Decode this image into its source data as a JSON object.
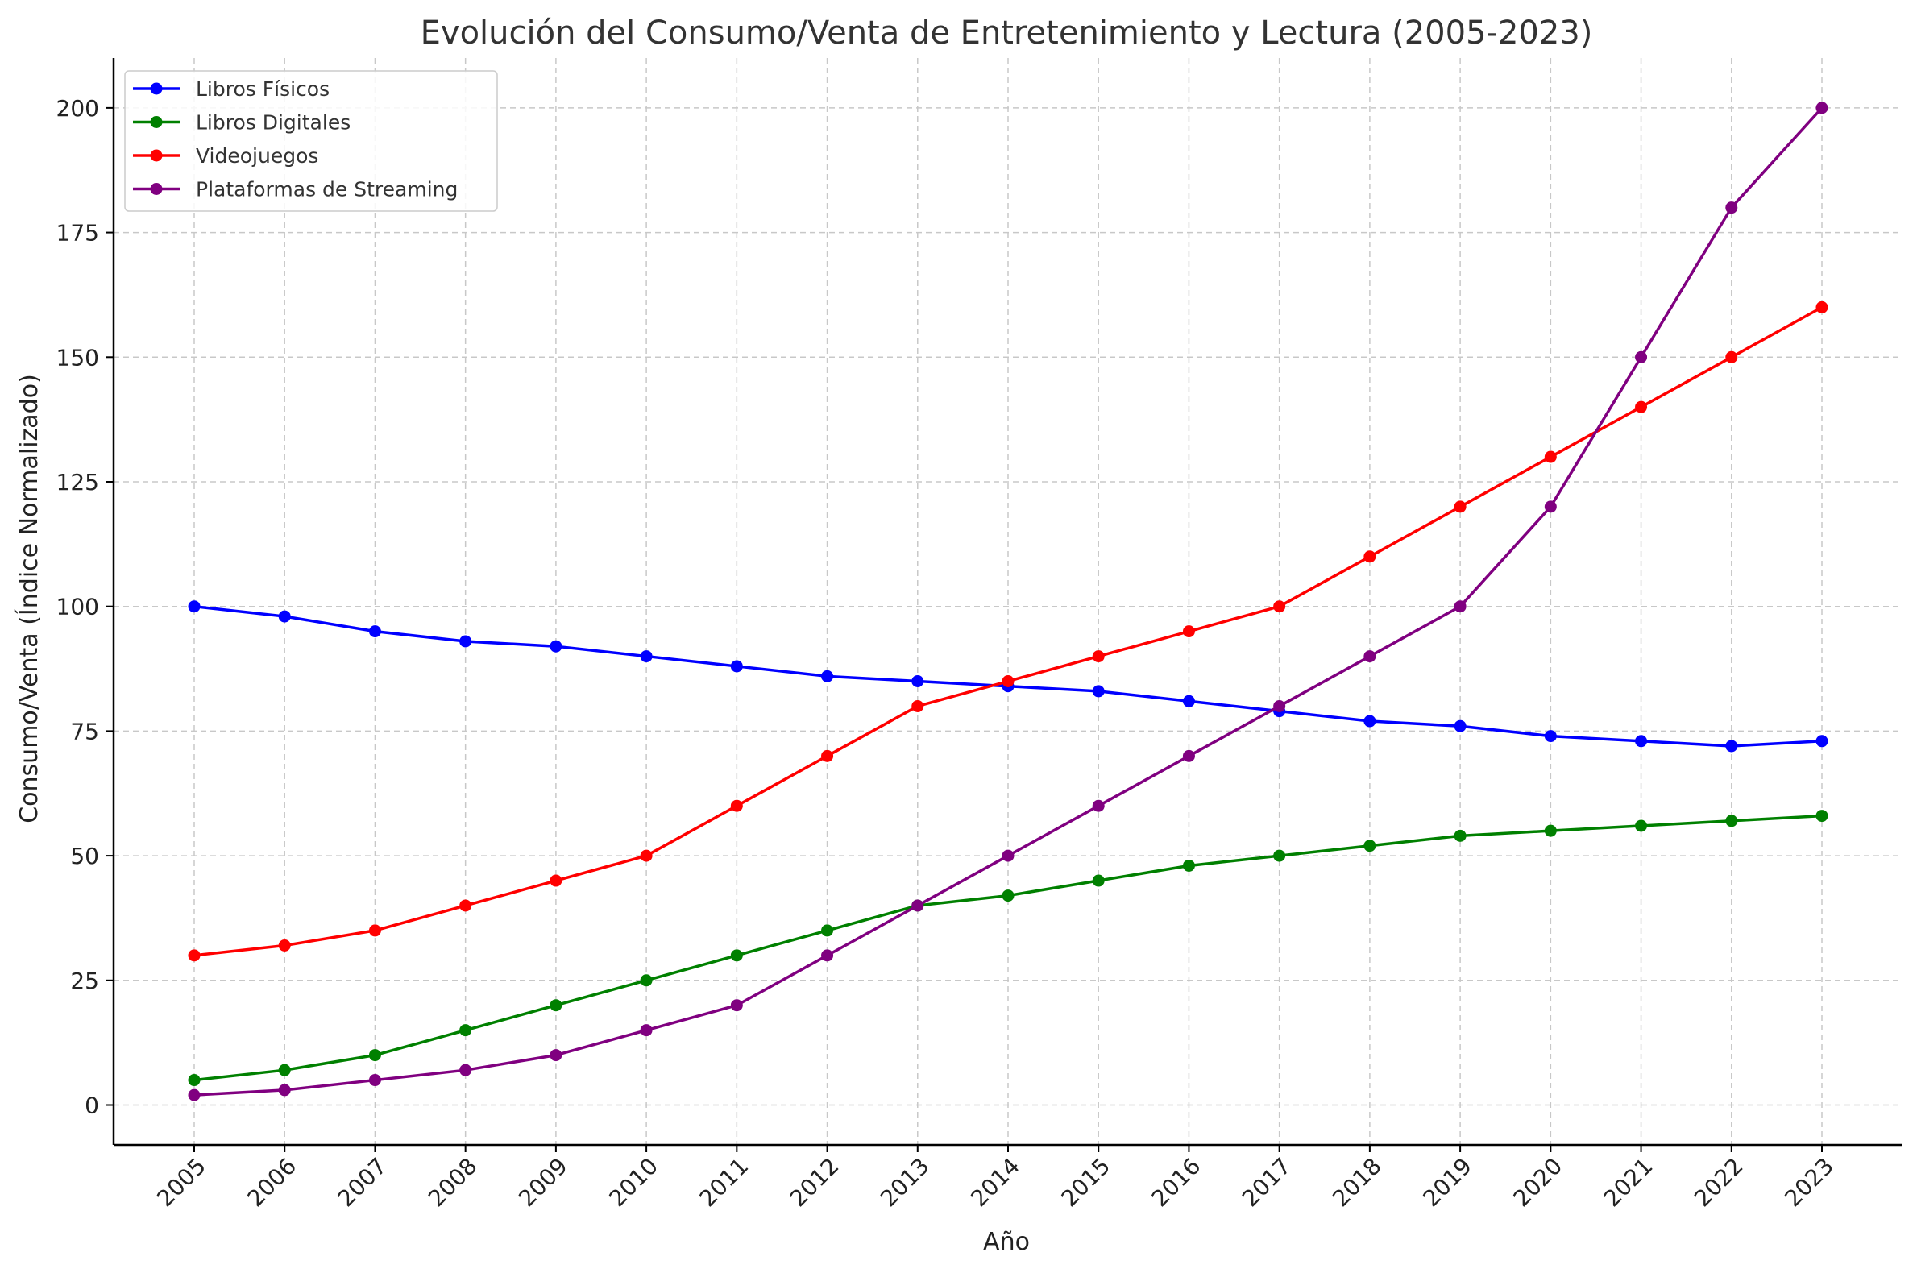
{
  "chart_data": {
    "type": "line",
    "title": "Evolución del Consumo/Venta de Entretenimiento y Lectura (2005-2023)",
    "xlabel": "Año",
    "ylabel": "Consumo/Venta (Índice Normalizado)",
    "x": [
      "2005",
      "2006",
      "2007",
      "2008",
      "2009",
      "2010",
      "2011",
      "2012",
      "2013",
      "2014",
      "2015",
      "2016",
      "2017",
      "2018",
      "2019",
      "2020",
      "2021",
      "2022",
      "2023"
    ],
    "ylim": [
      -8,
      210
    ],
    "yticks": [
      0,
      25,
      50,
      75,
      100,
      125,
      150,
      175,
      200
    ],
    "grid": true,
    "legend_position": "top-left",
    "series": [
      {
        "name": "Libros Físicos",
        "color": "#0000ff",
        "values": [
          100,
          98,
          95,
          93,
          92,
          90,
          88,
          86,
          85,
          84,
          83,
          81,
          79,
          77,
          76,
          74,
          73,
          72,
          73
        ]
      },
      {
        "name": "Libros Digitales",
        "color": "#008000",
        "values": [
          5,
          7,
          10,
          15,
          20,
          25,
          30,
          35,
          40,
          42,
          45,
          48,
          50,
          52,
          54,
          55,
          56,
          57,
          58
        ]
      },
      {
        "name": "Videojuegos",
        "color": "#ff0000",
        "values": [
          30,
          32,
          35,
          40,
          45,
          50,
          60,
          70,
          80,
          85,
          90,
          95,
          100,
          110,
          120,
          130,
          140,
          150,
          160
        ]
      },
      {
        "name": "Plataformas de Streaming",
        "color": "#800080",
        "values": [
          2,
          3,
          5,
          7,
          10,
          15,
          20,
          30,
          40,
          50,
          60,
          70,
          80,
          90,
          100,
          120,
          150,
          180,
          200
        ]
      }
    ]
  }
}
